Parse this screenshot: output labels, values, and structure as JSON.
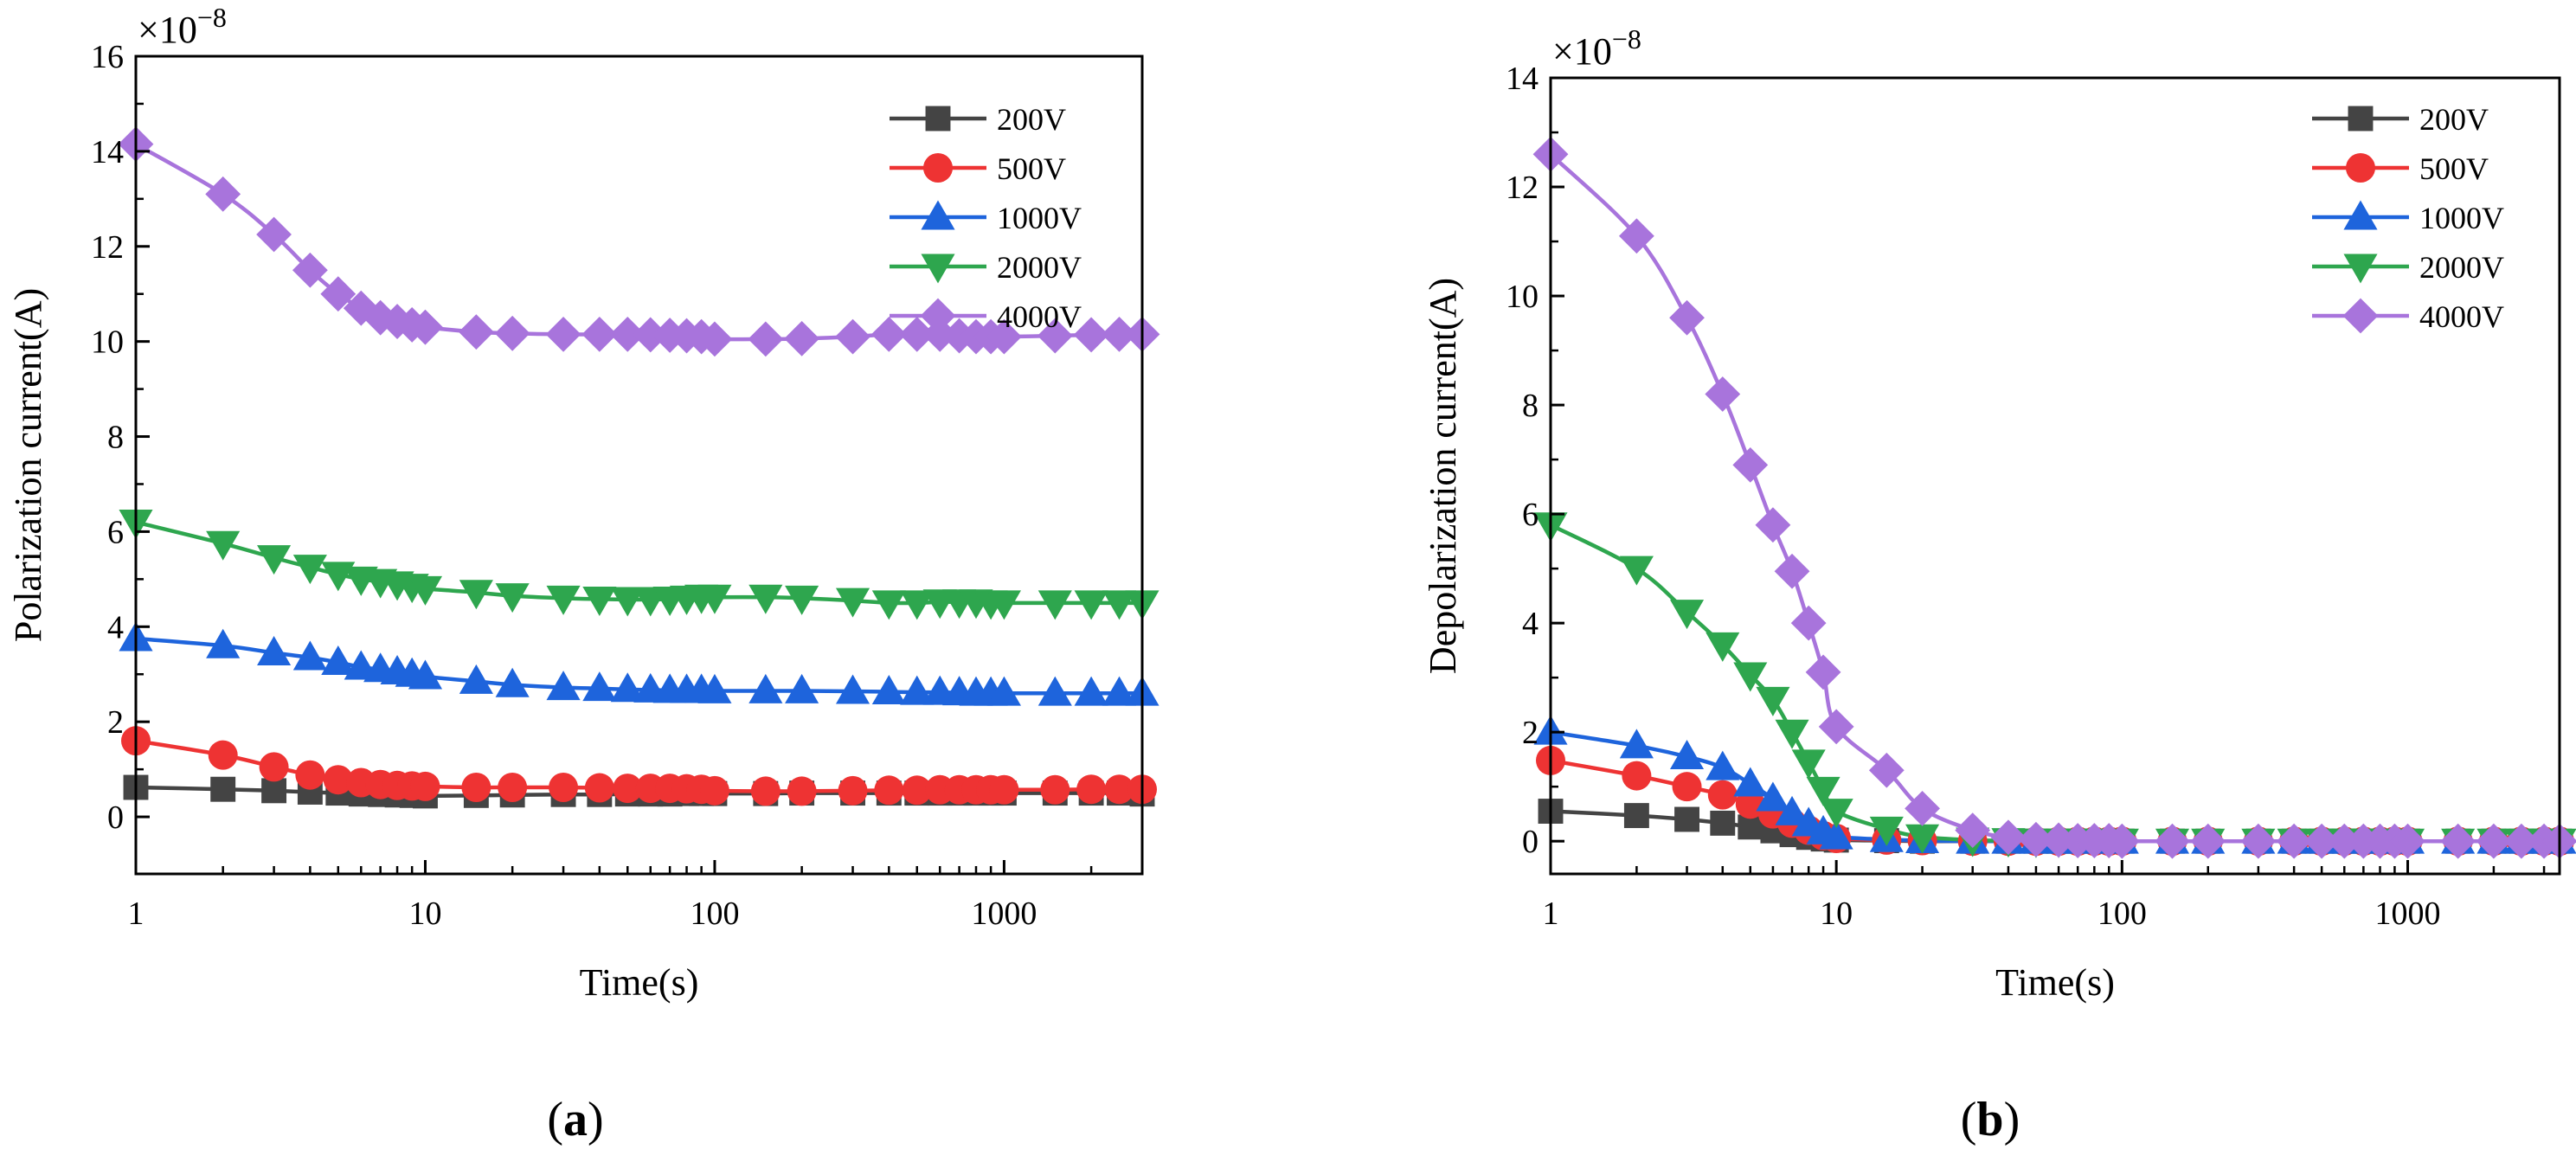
{
  "chart_data": [
    {
      "type": "line",
      "panel_label": "(a)",
      "panel_letter": "a",
      "xlabel": "Time(s)",
      "ylabel": "Polarization current(A)",
      "y_multiplier": "×10",
      "y_exponent": "−8",
      "x_scale": "log",
      "xlim": [
        1,
        3000
      ],
      "ylim": [
        -1.2,
        16
      ],
      "x_ticks": [
        1,
        10,
        100,
        1000
      ],
      "x_tick_labels": [
        "1",
        "10",
        "100",
        "1000"
      ],
      "y_ticks": [
        0,
        2,
        4,
        6,
        8,
        10,
        12,
        14,
        16
      ],
      "y_tick_labels": [
        "0",
        "2",
        "4",
        "6",
        "8",
        "10",
        "12",
        "14",
        "16"
      ],
      "legend_position": "top-right",
      "series": [
        {
          "name": "200V",
          "color": "#444444",
          "marker": "square",
          "x": [
            1,
            2,
            3,
            4,
            5,
            6,
            7,
            8,
            9,
            10,
            15,
            20,
            30,
            40,
            50,
            60,
            70,
            80,
            90,
            100,
            150,
            200,
            300,
            400,
            500,
            600,
            700,
            800,
            900,
            1000,
            1500,
            2000,
            2500,
            3000
          ],
          "y": [
            0.62,
            0.58,
            0.55,
            0.52,
            0.5,
            0.48,
            0.47,
            0.46,
            0.45,
            0.44,
            0.45,
            0.46,
            0.47,
            0.47,
            0.48,
            0.48,
            0.48,
            0.49,
            0.49,
            0.49,
            0.49,
            0.5,
            0.5,
            0.5,
            0.5,
            0.5,
            0.5,
            0.5,
            0.5,
            0.5,
            0.5,
            0.5,
            0.5,
            0.48
          ]
        },
        {
          "name": "500V",
          "color": "#ee3333",
          "marker": "circle",
          "x": [
            1,
            2,
            3,
            4,
            5,
            6,
            7,
            8,
            9,
            10,
            15,
            20,
            30,
            40,
            50,
            60,
            70,
            80,
            90,
            100,
            150,
            200,
            300,
            400,
            500,
            600,
            700,
            800,
            900,
            1000,
            1500,
            2000,
            2500,
            3000
          ],
          "y": [
            1.6,
            1.3,
            1.05,
            0.88,
            0.78,
            0.72,
            0.68,
            0.66,
            0.65,
            0.64,
            0.62,
            0.62,
            0.62,
            0.61,
            0.6,
            0.6,
            0.6,
            0.59,
            0.58,
            0.55,
            0.54,
            0.54,
            0.55,
            0.56,
            0.56,
            0.57,
            0.57,
            0.57,
            0.57,
            0.57,
            0.57,
            0.58,
            0.58,
            0.58
          ]
        },
        {
          "name": "1000V",
          "color": "#1e64dc",
          "marker": "triangle-up",
          "x": [
            1,
            2,
            3,
            4,
            5,
            6,
            7,
            8,
            9,
            10,
            15,
            20,
            30,
            40,
            50,
            60,
            70,
            80,
            90,
            100,
            150,
            200,
            300,
            400,
            500,
            600,
            700,
            800,
            900,
            1000,
            1500,
            2000,
            2500,
            3000
          ],
          "y": [
            3.75,
            3.6,
            3.45,
            3.35,
            3.25,
            3.15,
            3.1,
            3.05,
            3.0,
            2.95,
            2.85,
            2.78,
            2.72,
            2.7,
            2.68,
            2.67,
            2.66,
            2.66,
            2.66,
            2.65,
            2.65,
            2.65,
            2.64,
            2.63,
            2.62,
            2.62,
            2.61,
            2.6,
            2.6,
            2.6,
            2.6,
            2.6,
            2.6,
            2.6
          ]
        },
        {
          "name": "2000V",
          "color": "#2ea64e",
          "marker": "triangle-down",
          "x": [
            1,
            2,
            3,
            4,
            5,
            6,
            7,
            8,
            9,
            10,
            15,
            20,
            30,
            40,
            50,
            60,
            70,
            80,
            90,
            100,
            150,
            200,
            300,
            400,
            500,
            600,
            700,
            800,
            900,
            1000,
            1500,
            2000,
            2500,
            3000
          ],
          "y": [
            6.2,
            5.75,
            5.45,
            5.25,
            5.1,
            5.0,
            4.95,
            4.9,
            4.85,
            4.8,
            4.72,
            4.65,
            4.6,
            4.58,
            4.57,
            4.57,
            4.58,
            4.6,
            4.62,
            4.62,
            4.62,
            4.6,
            4.55,
            4.5,
            4.5,
            4.52,
            4.52,
            4.52,
            4.5,
            4.5,
            4.5,
            4.5,
            4.5,
            4.5
          ]
        },
        {
          "name": "4000V",
          "color": "#a874dc",
          "marker": "diamond",
          "x": [
            1,
            2,
            3,
            4,
            5,
            6,
            7,
            8,
            9,
            10,
            15,
            20,
            30,
            40,
            50,
            60,
            70,
            80,
            90,
            100,
            150,
            200,
            300,
            400,
            500,
            600,
            700,
            800,
            900,
            1000,
            1500,
            2000,
            2500,
            3000
          ],
          "y": [
            14.15,
            13.1,
            12.25,
            11.5,
            11.0,
            10.7,
            10.5,
            10.42,
            10.35,
            10.3,
            10.2,
            10.17,
            10.15,
            10.15,
            10.15,
            10.14,
            10.13,
            10.12,
            10.1,
            10.05,
            10.05,
            10.06,
            10.1,
            10.15,
            10.15,
            10.15,
            10.12,
            10.1,
            10.1,
            10.1,
            10.12,
            10.14,
            10.15,
            10.15
          ]
        }
      ]
    },
    {
      "type": "line",
      "panel_label": "(b)",
      "panel_letter": "b",
      "xlabel": "Time(s)",
      "ylabel": "Depolarization current(A)",
      "y_multiplier": "×10",
      "y_exponent": "−8",
      "x_scale": "log",
      "xlim": [
        1,
        3400
      ],
      "ylim": [
        -0.6,
        14
      ],
      "x_ticks": [
        1,
        10,
        100,
        1000
      ],
      "x_tick_labels": [
        "1",
        "10",
        "100",
        "1000"
      ],
      "y_ticks": [
        0,
        2,
        4,
        6,
        8,
        10,
        12,
        14
      ],
      "y_tick_labels": [
        "0",
        "2",
        "4",
        "6",
        "8",
        "10",
        "12",
        "14"
      ],
      "legend_position": "top-right",
      "series": [
        {
          "name": "200V",
          "color": "#444444",
          "marker": "square",
          "x": [
            1,
            2,
            3,
            4,
            5,
            6,
            7,
            8,
            9,
            10,
            15,
            20,
            30,
            40,
            50,
            60,
            70,
            80,
            90,
            100,
            150,
            200,
            300,
            400,
            500,
            600,
            700,
            800,
            900,
            1000,
            1500,
            2000,
            2500,
            3000,
            3400
          ],
          "y": [
            0.55,
            0.47,
            0.4,
            0.33,
            0.26,
            0.19,
            0.12,
            0.07,
            0.04,
            0.02,
            0.01,
            0.0,
            0.0,
            0.0,
            0.0,
            0.0,
            0.0,
            0.0,
            0.0,
            0.0,
            0.0,
            0.0,
            0.0,
            0.0,
            0.0,
            0.0,
            0.0,
            0.0,
            0.0,
            0.0,
            0.0,
            0.0,
            0.0,
            0.0,
            0.0
          ]
        },
        {
          "name": "500V",
          "color": "#ee3333",
          "marker": "circle",
          "x": [
            1,
            2,
            3,
            4,
            5,
            6,
            7,
            8,
            9,
            10,
            15,
            20,
            30,
            40,
            50,
            60,
            70,
            80,
            90,
            100,
            150,
            200,
            300,
            400,
            500,
            600,
            700,
            800,
            900,
            1000,
            1500,
            2000,
            2500,
            3000,
            3400
          ],
          "y": [
            1.48,
            1.2,
            1.0,
            0.85,
            0.68,
            0.5,
            0.33,
            0.2,
            0.1,
            0.05,
            0.02,
            0.01,
            0.0,
            0.0,
            0.0,
            0.0,
            0.0,
            0.0,
            0.0,
            0.0,
            0.0,
            0.0,
            0.0,
            0.0,
            0.0,
            0.0,
            0.0,
            0.0,
            0.0,
            0.0,
            0.0,
            0.0,
            0.0,
            0.0,
            0.0
          ]
        },
        {
          "name": "1000V",
          "color": "#1e64dc",
          "marker": "triangle-up",
          "x": [
            1,
            2,
            3,
            4,
            5,
            6,
            7,
            8,
            9,
            10,
            15,
            20,
            30,
            40,
            50,
            60,
            70,
            80,
            90,
            100,
            150,
            200,
            300,
            400,
            500,
            600,
            700,
            800,
            900,
            1000,
            1500,
            2000,
            2500,
            3000,
            3400
          ],
          "y": [
            2.0,
            1.75,
            1.55,
            1.35,
            1.05,
            0.78,
            0.52,
            0.32,
            0.17,
            0.08,
            0.03,
            0.01,
            0.0,
            0.0,
            0.0,
            0.0,
            0.0,
            0.0,
            0.0,
            0.0,
            0.0,
            0.0,
            0.0,
            0.0,
            0.0,
            0.0,
            0.0,
            0.0,
            0.0,
            0.0,
            0.0,
            0.0,
            0.0,
            0.0,
            0.0
          ]
        },
        {
          "name": "2000V",
          "color": "#2ea64e",
          "marker": "triangle-down",
          "x": [
            1,
            2,
            3,
            4,
            5,
            6,
            7,
            8,
            9,
            10,
            15,
            20,
            30,
            40,
            50,
            60,
            70,
            80,
            90,
            100,
            150,
            200,
            300,
            400,
            500,
            600,
            700,
            800,
            900,
            1000,
            1500,
            2000,
            2500,
            3000,
            3400
          ],
          "y": [
            5.8,
            5.0,
            4.2,
            3.6,
            3.05,
            2.6,
            2.0,
            1.45,
            0.95,
            0.55,
            0.22,
            0.08,
            0.02,
            0.01,
            0.0,
            0.0,
            0.0,
            0.0,
            0.0,
            0.0,
            0.0,
            0.0,
            0.0,
            0.0,
            0.0,
            0.0,
            0.0,
            0.0,
            0.0,
            0.0,
            0.0,
            0.0,
            0.0,
            0.0,
            0.0
          ]
        },
        {
          "name": "4000V",
          "color": "#a874dc",
          "marker": "diamond",
          "x": [
            1,
            2,
            3,
            4,
            5,
            6,
            7,
            8,
            9,
            10,
            15,
            20,
            30,
            40,
            50,
            60,
            70,
            80,
            90,
            100,
            150,
            200,
            300,
            400,
            500,
            600,
            700,
            800,
            900,
            1000,
            1500,
            2000,
            2500,
            3000,
            3400
          ],
          "y": [
            12.6,
            11.1,
            9.6,
            8.2,
            6.9,
            5.8,
            4.95,
            4.0,
            3.1,
            2.1,
            1.3,
            0.6,
            0.2,
            0.07,
            0.03,
            0.02,
            0.01,
            0.01,
            0.01,
            0.0,
            0.0,
            0.0,
            0.0,
            0.0,
            0.0,
            0.0,
            0.0,
            0.0,
            0.0,
            0.0,
            0.0,
            0.0,
            0.0,
            0.0,
            0.0
          ]
        }
      ]
    }
  ]
}
